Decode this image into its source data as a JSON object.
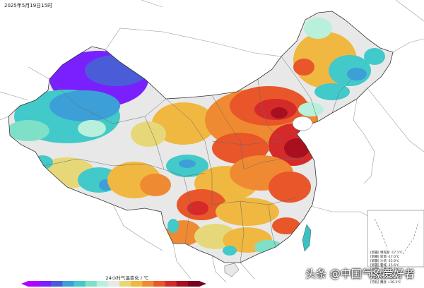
{
  "timestamp": "2025年5月19日15时",
  "legend": {
    "title": "24小时气温变化 / ℃",
    "colors": [
      "#b000ff",
      "#7a20ff",
      "#4a5cd8",
      "#3c9fd8",
      "#42c9c9",
      "#7fe0c8",
      "#b8f0dc",
      "#e8e8e8",
      "#e6d878",
      "#f0b840",
      "#f08a32",
      "#e8562a",
      "#d42a2a",
      "#a81020",
      "#7a0020"
    ]
  },
  "stations": [
    "[新疆] 特克斯  -17.1℃",
    "[新疆] 新源  -17.0℃",
    "[新疆] 沙湾  -15.9℃",
    "[新疆] 霍城  -15.6℃",
    "[新疆] 乌苏  -15.5℃",
    "[河北] 南宫  +16.9℃",
    "[河北] 肥乡  +16.5℃",
    "[河北] 魏县  +16.3℃"
  ],
  "watermark": "头条 @中国气象爱好者"
}
